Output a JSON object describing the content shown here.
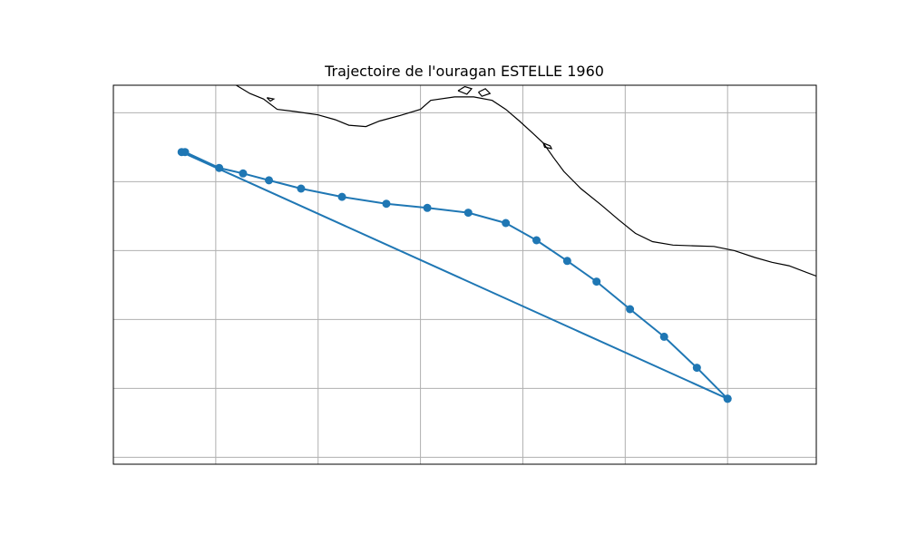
{
  "chart_data": {
    "type": "line",
    "title": "Trajectoire de l'ouragan ESTELLE 1960",
    "xlabel": "",
    "ylabel": "",
    "grid": true,
    "legend": "none",
    "xlim": [
      -114.0,
      -103.7
    ],
    "ylim": [
      10.8,
      16.3
    ],
    "x_gridlines": [
      -112.5,
      -111.0,
      -109.5,
      -108.0,
      -106.5,
      -105.0
    ],
    "y_gridlines": [
      15.9,
      14.9,
      13.9,
      12.9,
      11.9,
      10.9
    ],
    "series": [
      {
        "marker": "circle",
        "x": [
          -105.0,
          -105.45,
          -105.93,
          -106.43,
          -106.92,
          -107.35,
          -107.8,
          -108.25,
          -108.8,
          -109.4,
          -110.0,
          -110.65,
          -111.25,
          -111.72,
          -112.1,
          -112.45,
          -112.95,
          -113.0,
          -105.0
        ],
        "y": [
          11.75,
          12.2,
          12.65,
          13.05,
          13.45,
          13.75,
          14.05,
          14.3,
          14.45,
          14.52,
          14.58,
          14.68,
          14.8,
          14.92,
          15.02,
          15.1,
          15.33,
          15.33,
          11.75
        ]
      }
    ],
    "coastline": {
      "mainland": [
        [
          -112.2,
          16.3
        ],
        [
          -112.0,
          16.18
        ],
        [
          -111.8,
          16.1
        ],
        [
          -111.6,
          15.95
        ],
        [
          -111.35,
          15.92
        ],
        [
          -111.0,
          15.87
        ],
        [
          -110.75,
          15.8
        ],
        [
          -110.55,
          15.72
        ],
        [
          -110.3,
          15.7
        ],
        [
          -110.1,
          15.78
        ],
        [
          -109.8,
          15.86
        ],
        [
          -109.5,
          15.95
        ],
        [
          -109.35,
          16.08
        ],
        [
          -109.0,
          16.13
        ],
        [
          -108.72,
          16.13
        ],
        [
          -108.45,
          16.08
        ],
        [
          -108.25,
          15.95
        ],
        [
          -108.05,
          15.78
        ],
        [
          -107.85,
          15.6
        ],
        [
          -107.7,
          15.46
        ],
        [
          -107.55,
          15.25
        ],
        [
          -107.4,
          15.05
        ],
        [
          -107.15,
          14.8
        ],
        [
          -106.85,
          14.56
        ],
        [
          -106.6,
          14.35
        ],
        [
          -106.35,
          14.15
        ],
        [
          -106.1,
          14.03
        ],
        [
          -105.8,
          13.98
        ],
        [
          -105.5,
          13.97
        ],
        [
          -105.2,
          13.96
        ],
        [
          -104.9,
          13.9
        ],
        [
          -104.6,
          13.8
        ],
        [
          -104.35,
          13.73
        ],
        [
          -104.1,
          13.68
        ],
        [
          -103.7,
          13.53
        ]
      ],
      "islands": [
        [
          [
            -108.95,
            16.22
          ],
          [
            -108.85,
            16.28
          ],
          [
            -108.75,
            16.25
          ],
          [
            -108.82,
            16.17
          ],
          [
            -108.95,
            16.22
          ]
        ],
        [
          [
            -108.65,
            16.2
          ],
          [
            -108.55,
            16.25
          ],
          [
            -108.48,
            16.18
          ],
          [
            -108.6,
            16.14
          ],
          [
            -108.65,
            16.2
          ]
        ],
        [
          [
            -111.75,
            16.12
          ],
          [
            -111.65,
            16.1
          ],
          [
            -111.7,
            16.07
          ],
          [
            -111.75,
            16.12
          ]
        ],
        [
          [
            -107.7,
            15.46
          ],
          [
            -107.6,
            15.42
          ],
          [
            -107.58,
            15.38
          ],
          [
            -107.68,
            15.4
          ],
          [
            -107.7,
            15.46
          ]
        ]
      ]
    }
  },
  "colors": {
    "series": "#1f77b4",
    "grid": "#b0b0b0",
    "coastline": "#000000",
    "frame": "#000000"
  }
}
